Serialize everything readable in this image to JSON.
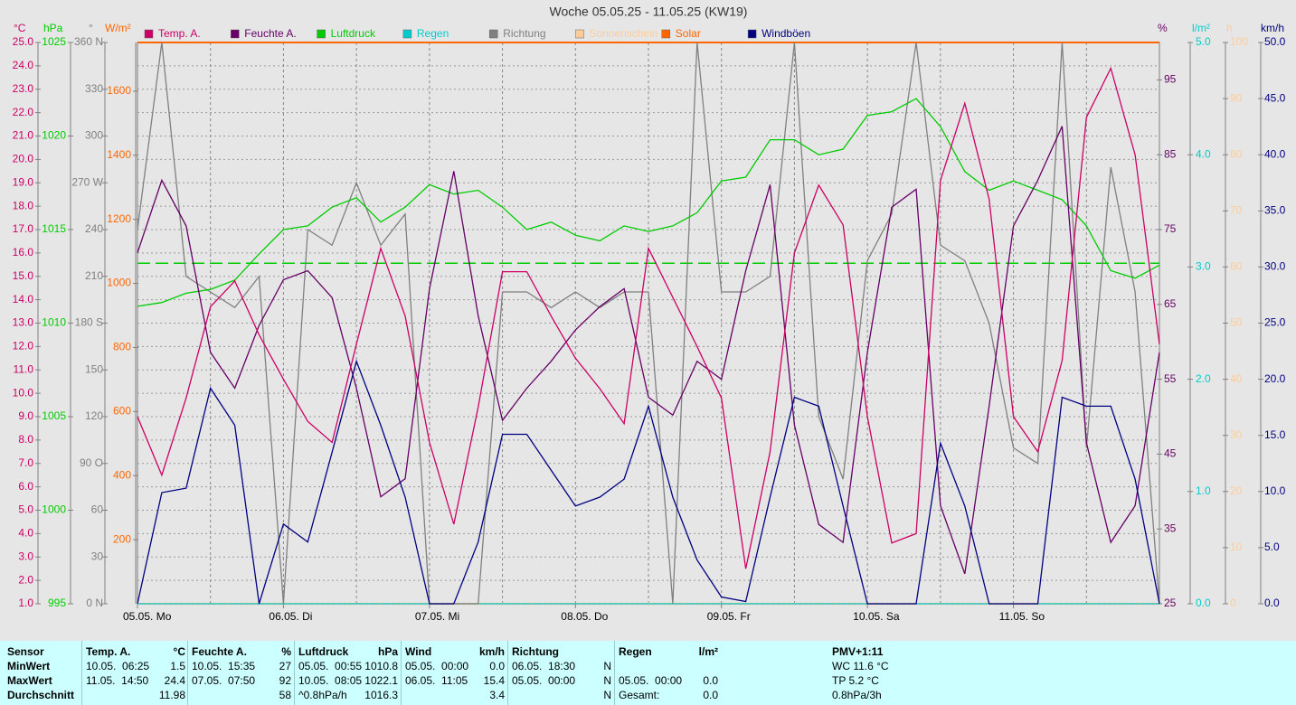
{
  "chart_data": {
    "type": "line",
    "title": "Woche 05.05.25 - 11.05.25 (KW19)",
    "xlim": [
      0,
      168
    ],
    "xticks": [
      {
        "value": 0,
        "label": "05.05.  Mo"
      },
      {
        "value": 24,
        "label": "06.05.  Di"
      },
      {
        "value": 48,
        "label": "07.05.  Mi"
      },
      {
        "value": 72,
        "label": "08.05.  Do"
      },
      {
        "value": 96,
        "label": "09.05.  Fr"
      },
      {
        "value": 120,
        "label": "10.05.  Sa"
      },
      {
        "value": 144,
        "label": "11.05.  So"
      }
    ],
    "xgrid": [
      12,
      24,
      36,
      48,
      60,
      72,
      84,
      96,
      108,
      120,
      132,
      144,
      156
    ],
    "grid": true,
    "axes": [
      {
        "unit": "°C",
        "color": "#cc0066",
        "ylim": [
          1,
          25
        ],
        "yticks": [
          {
            "value": 1,
            "label": "1.0"
          },
          {
            "value": 2,
            "label": "2.0"
          },
          {
            "value": 3,
            "label": "3.0"
          },
          {
            "value": 4,
            "label": "4.0"
          },
          {
            "value": 5,
            "label": "5.0"
          },
          {
            "value": 6,
            "label": "6.0"
          },
          {
            "value": 7,
            "label": "7.0"
          },
          {
            "value": 8,
            "label": "8.0"
          },
          {
            "value": 9,
            "label": "9.0"
          },
          {
            "value": 10,
            "label": "10.0"
          },
          {
            "value": 11,
            "label": "11.0"
          },
          {
            "value": 12,
            "label": "12.0"
          },
          {
            "value": 13,
            "label": "13.0"
          },
          {
            "value": 14,
            "label": "14.0"
          },
          {
            "value": 15,
            "label": "15.0"
          },
          {
            "value": 16,
            "label": "16.0"
          },
          {
            "value": 17,
            "label": "17.0"
          },
          {
            "value": 18,
            "label": "18.0"
          },
          {
            "value": 19,
            "label": "19.0"
          },
          {
            "value": 20,
            "label": "20.0"
          },
          {
            "value": 21,
            "label": "21.0"
          },
          {
            "value": 22,
            "label": "22.0"
          },
          {
            "value": 23,
            "label": "23.0"
          },
          {
            "value": 24,
            "label": "24.0"
          },
          {
            "value": 25,
            "label": "25.0"
          }
        ]
      },
      {
        "unit": "hPa",
        "color": "#00cc00",
        "ylim": [
          995,
          1025
        ],
        "yticks": [
          995,
          1000,
          1005,
          1010,
          1015,
          1020,
          1025
        ]
      },
      {
        "unit": "°",
        "color": "#808080",
        "ylim": [
          0,
          360
        ],
        "yticks": [
          {
            "value": 0,
            "label": "0 N"
          },
          30,
          60,
          {
            "value": 90,
            "label": "90 O"
          },
          120,
          150,
          {
            "value": 180,
            "label": "180 S"
          },
          210,
          240,
          {
            "value": 270,
            "label": "270 W"
          },
          300,
          330,
          {
            "value": 360,
            "label": "360 N"
          }
        ]
      },
      {
        "unit": "W/m²",
        "color": "#ff6600",
        "ylim": [
          0,
          1752
        ],
        "yticks": [
          200,
          400,
          600,
          800,
          1000,
          1200,
          1400,
          1600
        ]
      },
      {
        "unit": "%",
        "color": "#660066",
        "ylim": [
          25,
          100
        ],
        "yticks": [
          25,
          35,
          45,
          55,
          65,
          75,
          85,
          95
        ]
      },
      {
        "unit": "l/m²",
        "color": "#00cccc",
        "ylim": [
          0,
          5
        ],
        "yticks": [
          {
            "value": 0,
            "label": "0.0"
          },
          {
            "value": 1,
            "label": "1.0"
          },
          {
            "value": 2,
            "label": "2.0"
          },
          {
            "value": 3,
            "label": "3.0"
          },
          {
            "value": 4,
            "label": "4.0"
          },
          {
            "value": 5,
            "label": "5.0"
          }
        ]
      },
      {
        "unit": "h",
        "color": "#ffcc99",
        "ylim": [
          0,
          100
        ],
        "yticks": [
          0,
          10,
          20,
          30,
          40,
          50,
          60,
          70,
          80,
          90,
          100
        ]
      },
      {
        "unit": "km/h",
        "color": "#000080",
        "ylim": [
          0,
          50
        ],
        "yticks": [
          {
            "value": 0,
            "label": "0.0"
          },
          {
            "value": 5,
            "label": "5.0"
          },
          {
            "value": 10,
            "label": "10.0"
          },
          {
            "value": 15,
            "label": "15.0"
          },
          {
            "value": 20,
            "label": "20.0"
          },
          {
            "value": 25,
            "label": "25.0"
          },
          {
            "value": 30,
            "label": "30.0"
          },
          {
            "value": 35,
            "label": "35.0"
          },
          {
            "value": 40,
            "label": "40.0"
          },
          {
            "value": 45,
            "label": "45.0"
          },
          {
            "value": 50,
            "label": "50.0"
          }
        ]
      }
    ],
    "x": [
      0,
      4,
      8,
      12,
      16,
      20,
      24,
      28,
      32,
      36,
      40,
      44,
      48,
      52,
      56,
      60,
      64,
      68,
      72,
      76,
      80,
      84,
      88,
      92,
      96,
      100,
      104,
      108,
      112,
      116,
      120,
      124,
      128,
      132,
      136,
      140,
      144,
      148,
      152,
      156,
      160,
      164,
      168
    ],
    "series": [
      {
        "name": "Temp. A.",
        "color": "#cc0066",
        "axis": 0,
        "values": [
          9.0,
          6.5,
          9.8,
          13.7,
          14.8,
          12.5,
          10.6,
          8.8,
          7.9,
          12.1,
          16.2,
          13.3,
          7.9,
          4.4,
          9.4,
          15.2,
          15.2,
          13.3,
          11.5,
          10.2,
          8.7,
          16.2,
          14.1,
          12.0,
          9.8,
          2.5,
          7.5,
          16.0,
          18.9,
          17.2,
          9.0,
          3.6,
          4.0,
          19.1,
          22.4,
          18.3,
          9.0,
          7.5,
          11.4,
          21.8,
          23.9,
          20.2,
          12.1
        ]
      },
      {
        "name": "Feuchte A.",
        "color": "#660066",
        "axis": 4,
        "values": [
          71.9,
          81.6,
          75.5,
          58.6,
          53.8,
          62.2,
          68.3,
          69.5,
          65.9,
          53.8,
          39.3,
          41.7,
          67.1,
          82.8,
          63.5,
          49.5,
          53.8,
          57.4,
          61.6,
          64.7,
          67.1,
          52.6,
          50.2,
          57.4,
          55.0,
          69.5,
          81.0,
          48.9,
          35.6,
          33.2,
          58.6,
          78.0,
          80.4,
          38.1,
          29.0,
          51.4,
          75.5,
          81.6,
          88.8,
          46.5,
          33.2,
          38.1,
          58.6
        ]
      },
      {
        "name": "Luftdruck",
        "color": "#00cc00",
        "axis": 1,
        "values": [
          1010.9,
          1011.1,
          1011.6,
          1011.8,
          1012.3,
          1013.7,
          1015.0,
          1015.2,
          1016.2,
          1016.7,
          1015.4,
          1016.2,
          1017.4,
          1016.9,
          1017.1,
          1016.2,
          1015.0,
          1015.4,
          1014.7,
          1014.4,
          1015.2,
          1014.9,
          1015.2,
          1015.9,
          1017.6,
          1017.8,
          1019.8,
          1019.8,
          1019.0,
          1019.3,
          1021.1,
          1021.3,
          1022.0,
          1020.5,
          1018.1,
          1017.1,
          1017.6,
          1017.1,
          1016.6,
          1015.2,
          1012.8,
          1012.4,
          1013.1
        ]
      },
      {
        "name": "Regen",
        "color": "#00cccc",
        "axis": 5,
        "values": [
          0,
          0,
          0,
          0,
          0,
          0,
          0,
          0,
          0,
          0,
          0,
          0,
          0,
          0,
          0,
          0,
          0,
          0,
          0,
          0,
          0,
          0,
          0,
          0,
          0,
          0,
          0,
          0,
          0,
          0,
          0,
          0,
          0,
          0,
          0,
          0,
          0,
          0,
          0,
          0,
          0,
          0,
          0
        ]
      },
      {
        "name": "Richtung",
        "color": "#808080",
        "axis": 2,
        "values": [
          240,
          360,
          210,
          200,
          190,
          210,
          0,
          240,
          230,
          270,
          230,
          250,
          0,
          0,
          0,
          200,
          200,
          190,
          200,
          190,
          200,
          200,
          0,
          360,
          200,
          200,
          210,
          360,
          120,
          80,
          220,
          250,
          360,
          230,
          220,
          180,
          100,
          90,
          360,
          100,
          280,
          200,
          0
        ]
      },
      {
        "name": "Sonnenschein",
        "color": "#ffcc99",
        "axis": 6,
        "dashed": true,
        "values": [
          0,
          0,
          0,
          0,
          0,
          0,
          0,
          0,
          0,
          0,
          0,
          0,
          0,
          0,
          0,
          0,
          0,
          0,
          0,
          0,
          0,
          0,
          0,
          0,
          0,
          0,
          0,
          0,
          0,
          0,
          0,
          0,
          0,
          0,
          0,
          0,
          0,
          0,
          0,
          0,
          0,
          0,
          0
        ]
      },
      {
        "name": "Solar",
        "color": "#ff6600",
        "axis": 3,
        "values": [
          0,
          0,
          0,
          0,
          0,
          0,
          0,
          0,
          0,
          0,
          0,
          0,
          0,
          0,
          0,
          0,
          0,
          0,
          0,
          0,
          0,
          0,
          0,
          0,
          0,
          0,
          0,
          0,
          0,
          0,
          0,
          0,
          0,
          0,
          0,
          0,
          0,
          0,
          0,
          0,
          0,
          0,
          0
        ]
      },
      {
        "name": "Windböen",
        "color": "#000080",
        "axis": 7,
        "values": [
          0,
          9.9,
          10.3,
          19.2,
          15.9,
          0,
          7.1,
          5.5,
          13.5,
          21.6,
          15.9,
          9.5,
          0,
          0,
          5.5,
          15.1,
          15.1,
          11.9,
          8.7,
          9.5,
          11.1,
          17.6,
          9.5,
          3.9,
          0.6,
          0.2,
          9.5,
          18.4,
          17.6,
          8.7,
          0,
          0,
          0,
          14.3,
          8.7,
          0,
          0,
          0,
          18.4,
          17.6,
          17.6,
          11.1,
          0
        ]
      }
    ],
    "reference_line": {
      "axis": 1,
      "value": 1013.2,
      "color": "#00cc00"
    }
  },
  "stats_table": {
    "blocks": [
      {
        "header": [
          "Sensor"
        ],
        "rows": [
          [
            "MinWert"
          ],
          [
            "MaxWert"
          ],
          [
            "Durchschnitt"
          ]
        ],
        "align": "left"
      },
      {
        "header": [
          "Temp. A.",
          "°C"
        ],
        "rows": [
          [
            "10.05.  06:25",
            "1.5"
          ],
          [
            "11.05.  14:50",
            "24.4"
          ],
          [
            "11.98"
          ]
        ]
      },
      {
        "header": [
          "Feuchte A.",
          "%"
        ],
        "rows": [
          [
            "10.05.  15:35",
            "27"
          ],
          [
            "07.05.  07:50",
            "92"
          ],
          [
            "58"
          ]
        ]
      },
      {
        "header": [
          "Luftdruck",
          "hPa"
        ],
        "rows": [
          [
            "05.05.  00:55",
            "1010.8"
          ],
          [
            "10.05.  08:05",
            "1022.1"
          ],
          [
            "^0.8hPa/h",
            "1016.3"
          ]
        ]
      },
      {
        "header": [
          "Wind",
          "km/h"
        ],
        "rows": [
          [
            "05.05.  00:00",
            "0.0"
          ],
          [
            "06.05.  11:05",
            "15.4"
          ],
          [
            "3.4"
          ]
        ]
      },
      {
        "header": [
          "Richtung"
        ],
        "rows": [
          [
            "06.05.  18:30",
            "N"
          ],
          [
            "05.05.  00:00",
            "N"
          ],
          [
            "N"
          ]
        ]
      },
      {
        "header": [
          "Regen",
          "l/m²"
        ],
        "rows": [
          [
            "05.05.  00:00",
            "0.0"
          ],
          [
            "Gesamt:",
            "0.0"
          ]
        ]
      },
      {
        "header": [
          "PMV+1:11"
        ],
        "rows": [
          [
            "WC 11.6 °C"
          ],
          [
            "TP 5.2 °C"
          ],
          [
            "0.8hPa/3h"
          ]
        ],
        "align": "left"
      }
    ]
  }
}
